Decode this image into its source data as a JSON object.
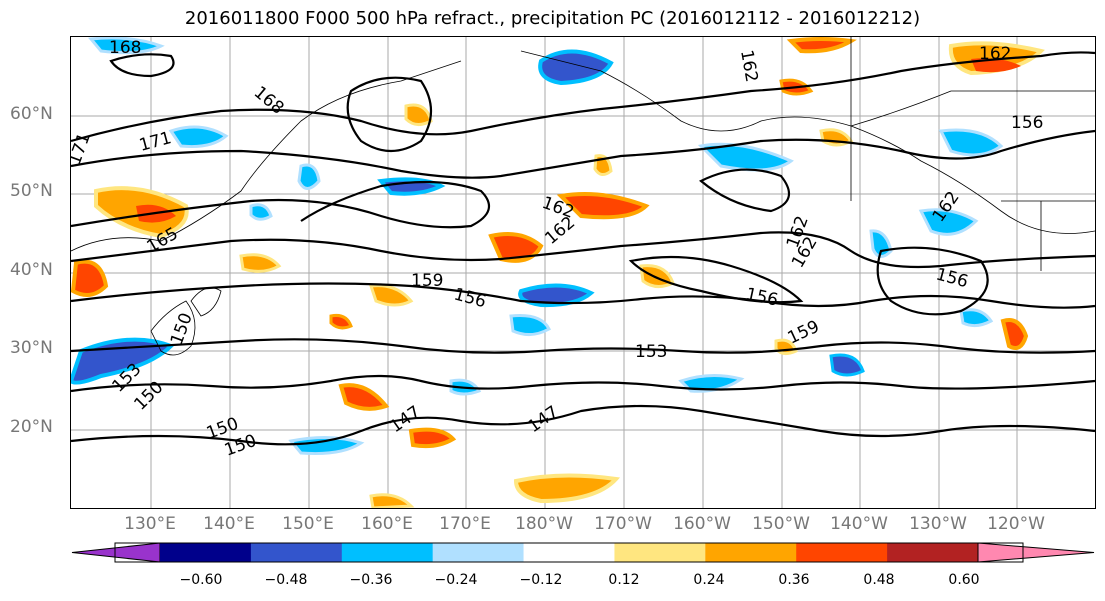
{
  "title": "2016011800 F000 500 hPa refract., precipitation PC (2016012112 - 2016012212)",
  "map": {
    "lat_labels": [
      "60°N",
      "50°N",
      "40°N",
      "30°N",
      "20°N"
    ],
    "lon_labels": [
      "130°E",
      "140°E",
      "150°E",
      "160°E",
      "170°E",
      "180°W",
      "170°W",
      "160°W",
      "150°W",
      "140°W",
      "130°W",
      "120°W"
    ],
    "contour_labels": [
      "168",
      "162",
      "162",
      "168",
      "171",
      "171",
      "165",
      "162",
      "162",
      "162",
      "162",
      "156",
      "162",
      "159",
      "156",
      "156",
      "156",
      "153",
      "159",
      "150",
      "150",
      "150",
      "147",
      "147",
      "150",
      "153"
    ]
  },
  "colorbar": {
    "ticks": [
      "−0.60",
      "−0.48",
      "−0.36",
      "−0.24",
      "−0.12",
      "0.12",
      "0.24",
      "0.36",
      "0.48",
      "0.60"
    ],
    "colors": [
      "#9933cc",
      "#00008b",
      "#3355cc",
      "#00bfff",
      "#b0e0ff",
      "#ffffff",
      "#ffe680",
      "#ffa500",
      "#ff4500",
      "#b22222",
      "#ff88b0"
    ]
  }
}
